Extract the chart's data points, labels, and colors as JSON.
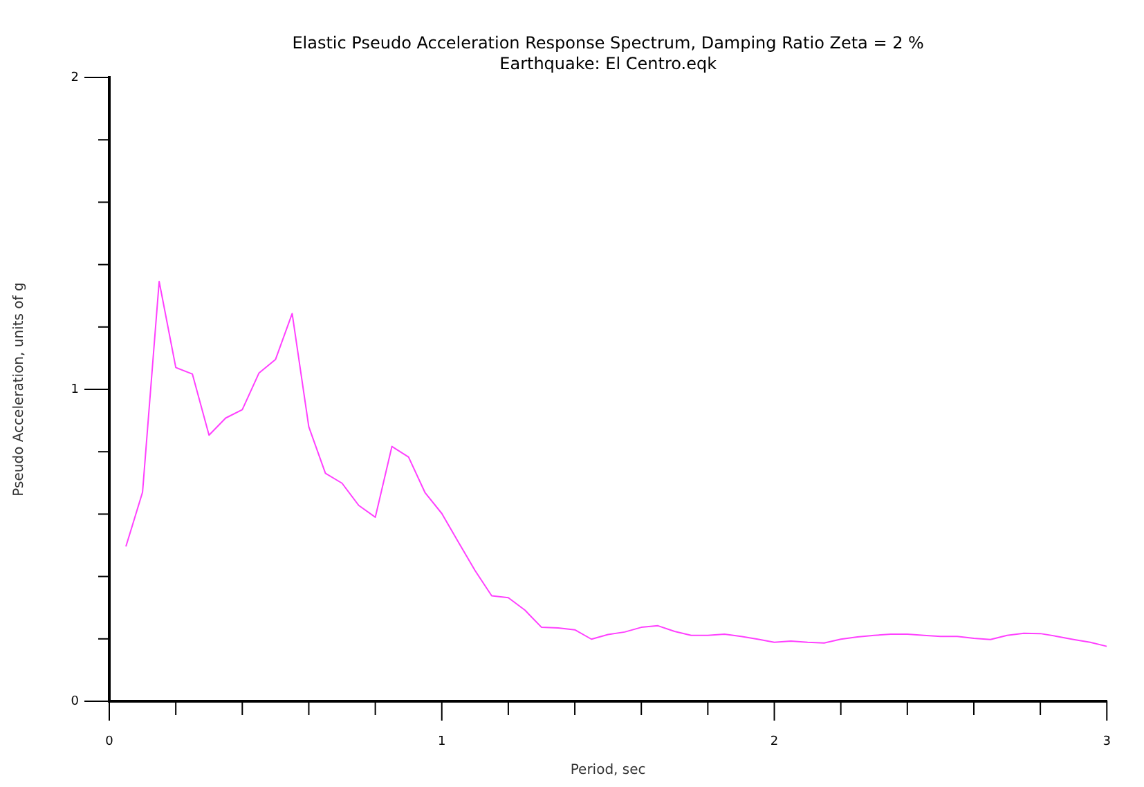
{
  "chart_data": {
    "type": "line",
    "title": "Elastic Pseudo Acceleration Response Spectrum, Damping Ratio Zeta = 2 %",
    "subtitle": "Earthquake: El Centro.eqk",
    "xlabel": "Period, sec",
    "ylabel": "Pseudo Acceleration, units of g",
    "x": [
      0.05,
      0.1,
      0.15,
      0.2,
      0.25,
      0.3,
      0.35,
      0.4,
      0.45,
      0.5,
      0.55,
      0.6,
      0.65,
      0.7,
      0.75,
      0.8,
      0.85,
      0.9,
      0.95,
      1.0,
      1.05,
      1.1,
      1.15,
      1.2,
      1.25,
      1.3,
      1.35,
      1.4,
      1.45,
      1.5,
      1.55,
      1.6,
      1.65,
      1.7,
      1.75,
      1.8,
      1.85,
      1.9,
      1.95,
      2.0,
      2.05,
      2.1,
      2.15,
      2.2,
      2.25,
      2.3,
      2.35,
      2.4,
      2.45,
      2.5,
      2.55,
      2.6,
      2.65,
      2.7,
      2.75,
      2.8,
      2.85,
      2.9,
      2.95,
      3.0
    ],
    "series": [
      {
        "color": "#ff40ff",
        "values": [
          0.496,
          0.67,
          1.346,
          1.07,
          1.049,
          0.853,
          0.908,
          0.935,
          1.052,
          1.096,
          1.243,
          0.88,
          0.731,
          0.699,
          0.628,
          0.59,
          0.817,
          0.783,
          0.668,
          0.602,
          0.51,
          0.419,
          0.338,
          0.332,
          0.292,
          0.237,
          0.235,
          0.229,
          0.199,
          0.214,
          0.222,
          0.237,
          0.242,
          0.224,
          0.211,
          0.211,
          0.215,
          0.208,
          0.199,
          0.189,
          0.193,
          0.189,
          0.187,
          0.199,
          0.206,
          0.211,
          0.215,
          0.215,
          0.211,
          0.208,
          0.208,
          0.202,
          0.198,
          0.211,
          0.218,
          0.217,
          0.208,
          0.198,
          0.189,
          0.176
        ]
      }
    ],
    "xlim": [
      0,
      3
    ],
    "ylim": [
      0,
      2
    ],
    "xticks": [
      0,
      {
        "value": 0.2,
        "label": null
      },
      {
        "value": 0.4,
        "label": null
      },
      {
        "value": 0.6,
        "label": null
      },
      {
        "value": 0.8,
        "label": null
      },
      1,
      {
        "value": 1.2,
        "label": null
      },
      {
        "value": 1.4,
        "label": null
      },
      {
        "value": 1.6,
        "label": null
      },
      {
        "value": 1.8,
        "label": null
      },
      2,
      {
        "value": 2.2,
        "label": null
      },
      {
        "value": 2.4,
        "label": null
      },
      {
        "value": 2.6,
        "label": null
      },
      {
        "value": 2.8,
        "label": null
      },
      3
    ],
    "yticks": [
      0,
      {
        "value": 0.2,
        "label": null
      },
      {
        "value": 0.4,
        "label": null
      },
      {
        "value": 0.6,
        "label": null
      },
      {
        "value": 0.8,
        "label": null
      },
      1,
      {
        "value": 1.2,
        "label": null
      },
      {
        "value": 1.4,
        "label": null
      },
      {
        "value": 1.6,
        "label": null
      },
      {
        "value": 1.8,
        "label": null
      },
      2
    ],
    "grid": false,
    "legend": false,
    "marker": "none",
    "line_style": "solid"
  }
}
